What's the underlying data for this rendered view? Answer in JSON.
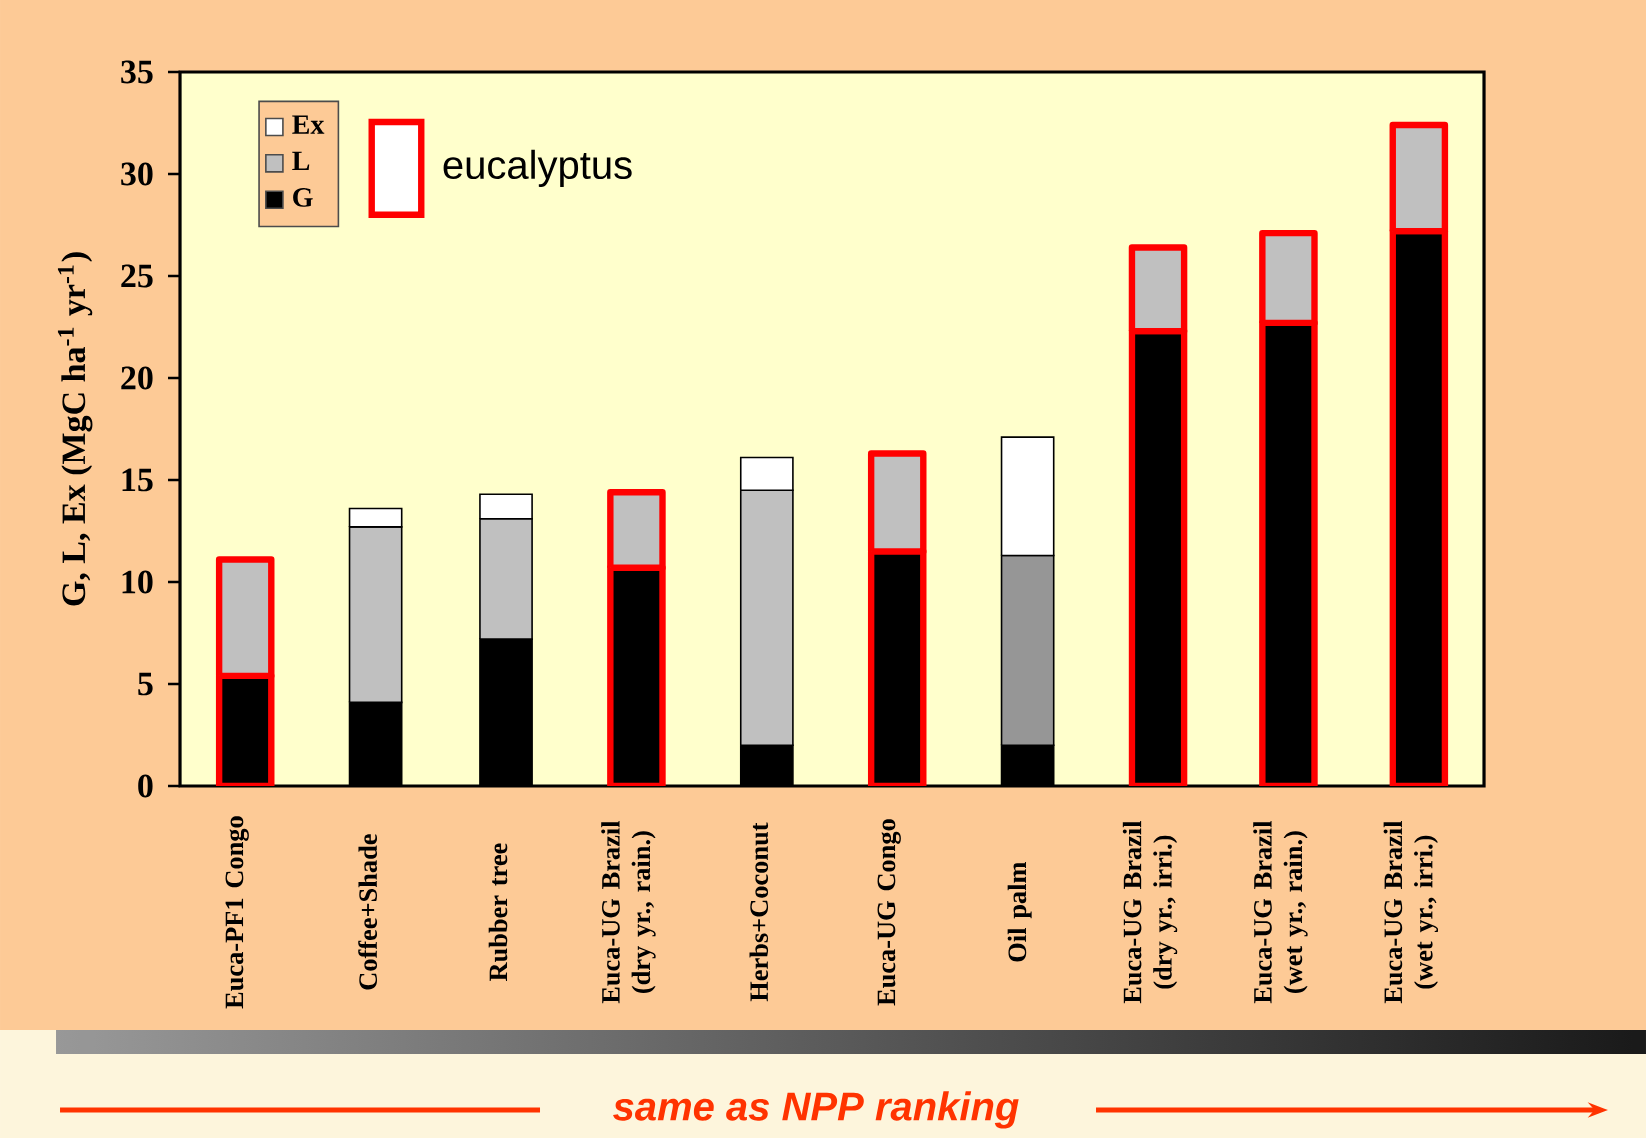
{
  "chart_data": {
    "type": "bar",
    "stacked": true,
    "ylabel": "G, L, Ex (MgC ha$^{-1}$ yr$^{-1}$)",
    "categories": [
      "Euca-PF1 Congo",
      "Coffee+Shade",
      "Rubber tree",
      "Euca-UG Brazil (dry yr., rain.)",
      "Herbs+Coconut",
      "Euca-UG Congo",
      "Oil palm",
      "Euca-UG Brazil (dry yr., irri.)",
      "Euca-UG Brazil (wet yr., rain.)",
      "Euca-UG Brazil (wet yr., irri.)"
    ],
    "series": [
      {
        "name": "G",
        "color": "#000000",
        "values": [
          5.4,
          4.1,
          7.2,
          10.7,
          2.0,
          11.5,
          2.0,
          22.3,
          22.7,
          27.2
        ]
      },
      {
        "name": "L",
        "color": "#c0c0c0",
        "colors": [
          "#c0c0c0",
          "#c0c0c0",
          "#c0c0c0",
          "#c0c0c0",
          "#c0c0c0",
          "#c0c0c0",
          "#969696",
          "#c0c0c0",
          "#c0c0c0",
          "#c0c0c0"
        ],
        "values": [
          5.7,
          8.6,
          5.9,
          3.7,
          12.5,
          4.8,
          9.3,
          4.1,
          4.4,
          5.2
        ]
      },
      {
        "name": "Ex",
        "color": "#ffffff",
        "values": [
          null,
          0.9,
          1.2,
          null,
          1.6,
          null,
          5.8,
          null,
          null,
          null
        ]
      }
    ],
    "ylim": [
      0,
      35
    ],
    "yticks": [
      0,
      5,
      10,
      15,
      20,
      25,
      30,
      35
    ],
    "grid": false,
    "legend": "top left",
    "annotations": [
      "eucalyptus",
      "same as NPP ranking"
    ]
  }
}
